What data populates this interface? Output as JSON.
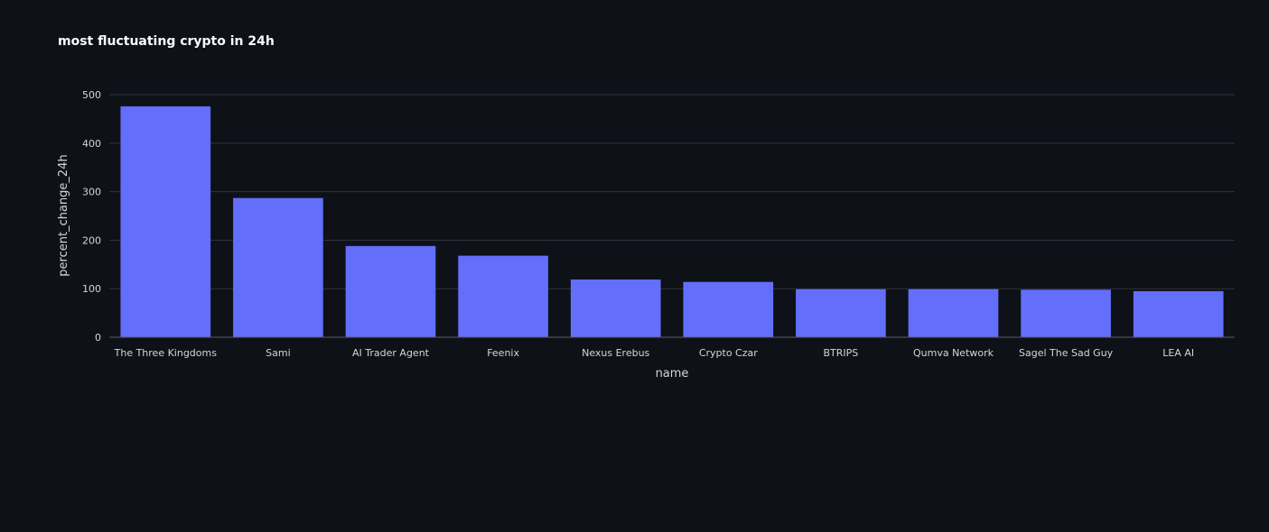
{
  "chart_data": {
    "type": "bar",
    "title": "most fluctuating crypto in 24h",
    "xlabel": "name",
    "ylabel": "percent_change_24h",
    "categories": [
      "The Three Kingdoms",
      "Sami",
      "AI Trader Agent",
      "Feenix",
      "Nexus Erebus",
      "Crypto Czar",
      "BTRIPS",
      "Qumva Network",
      "Sagel The Sad Guy",
      "LEA AI"
    ],
    "values": [
      476,
      287,
      188,
      168,
      119,
      114,
      99,
      99,
      98,
      95
    ],
    "ylim": [
      0,
      500
    ],
    "yticks": [
      0,
      100,
      200,
      300,
      400,
      500
    ],
    "grid": true,
    "legend": "none",
    "colors": {
      "bar": "#636efa",
      "background": "#0e1117",
      "grid": "#31333f",
      "text": "#fafafa",
      "tick_text": "#d5d6d9"
    }
  }
}
